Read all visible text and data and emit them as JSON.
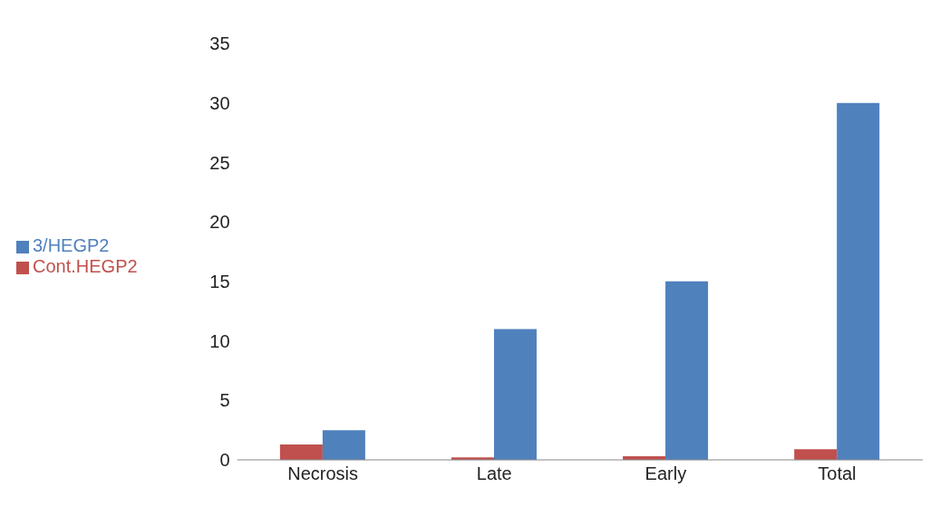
{
  "chart_data": {
    "type": "bar",
    "categories": [
      "Necrosis",
      "Late",
      "Early",
      "Total"
    ],
    "series": [
      {
        "name": "3/HEGP2",
        "color": "#4f81bd",
        "values": [
          2.5,
          11,
          15,
          30
        ]
      },
      {
        "name": "Cont.HEGP2",
        "color": "#c0504d",
        "values": [
          1.3,
          0.2,
          0.3,
          0.9
        ]
      }
    ],
    "ylim": [
      0,
      35
    ],
    "yticks": [
      0,
      5,
      10,
      15,
      20,
      25,
      30,
      35
    ],
    "grid": false,
    "legend": "left"
  }
}
